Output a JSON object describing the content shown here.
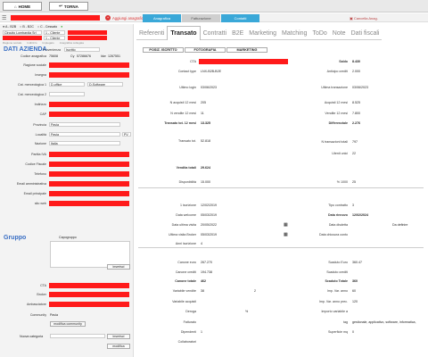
{
  "topbar": {
    "home": "HOME",
    "back": "TORNA",
    "add_label": "Aggiungi anagrafica",
    "tabs": [
      "Anagrafica",
      "Fatturazione",
      "Contatti"
    ],
    "cancel_label": "Cancella Anag."
  },
  "sidebar": {
    "filters": [
      "A - B2B",
      "B - B2C",
      "C - Cessato"
    ],
    "circuit": "Circuito Lombardia Srl",
    "c1": "1 - Cliente",
    "c2": "1 - Cliente",
    "sub": [
      "Ragione sociale",
      "Indirizzo",
      "Impiegato",
      "Anagrafica collegata"
    ],
    "section_title": "DATI AZIENDA",
    "provenienza_label": "Provenienza",
    "provenienza_value": "Iscritto",
    "codice_label": "Codice anagrafica",
    "codice_value": "75608",
    "cy_label": "Cy",
    "cy_value": "57286676",
    "idw_label": "Idw",
    "idw_value": "1267551",
    "rows": [
      {
        "label": "Ragione sociale",
        "value": ""
      },
      {
        "label": "Insegna",
        "value": ""
      },
      {
        "label": "Cat. merceologica 1",
        "value": "D-office"
      },
      {
        "label": "Cat. merceologica 2",
        "value": ""
      },
      {
        "label": "Indirizzo",
        "value": ""
      },
      {
        "label": "CAP",
        "value": ""
      },
      {
        "label": "Provincia",
        "value": "Pavia"
      },
      {
        "label": "Località",
        "value": "Pavia"
      },
      {
        "label": "Nazione",
        "value": "Italia"
      },
      {
        "label": "Partita IVA",
        "value": ""
      },
      {
        "label": "Codice Fiscale",
        "value": ""
      },
      {
        "label": "Telefono",
        "value": ""
      },
      {
        "label": "Email amministrativa",
        "value": ""
      },
      {
        "label": "Email principale",
        "value": ""
      },
      {
        "label": "sito web",
        "value": ""
      }
    ],
    "cat1_sub": "D-Software",
    "provincia_code": "PV",
    "gruppo_title": "Gruppo",
    "capogruppo": "Capogruppo",
    "inserisci": "inserisci",
    "cta_label": "CTA",
    "broker_label": "Broker",
    "ambasciatore_label": "Ambasciatore",
    "community_label": "Community",
    "community_value": "Pavia",
    "modifica_community": "modifica community",
    "nuova_cat_label": "Nuova categoria",
    "inserisci2": "inserisci",
    "modifica": "modifica"
  },
  "main": {
    "tabs": [
      "Referenti",
      "Transato",
      "Contratti",
      "B2E",
      "Marketing",
      "Matching",
      "ToDo",
      "Note",
      "Dati fiscali"
    ],
    "subtabs": [
      "POSIZ. ISCRITTO",
      "FOTOGRAFIA",
      "MARKETING"
    ],
    "left": [
      {
        "label": "CTA",
        "value": ""
      },
      {
        "label": "Contact type",
        "value": "LNX-B2B-B2E"
      },
      {
        "label": "Ultimo login",
        "value": "03/06/2023"
      },
      {
        "label": "N acquisti 12 mesi",
        "value": "205"
      },
      {
        "label": "N vendite 12 mesi",
        "value": "11"
      },
      {
        "label": "Transato tot. 12 mesi",
        "value": "13.325"
      },
      {
        "label": "Transato tot.",
        "value": "52.818"
      },
      {
        "label": "Vendita totali",
        "value": "29.624"
      },
      {
        "label": "Disponibilità",
        "value": "15.000"
      }
    ],
    "right": [
      {
        "label": "Saldo",
        "value": "8.430"
      },
      {
        "label": "Anticipo crediti",
        "value": "2.000"
      },
      {
        "label": "Ultima transazione",
        "value": "03/06/2023"
      },
      {
        "label": "Acquisti 12 mesi",
        "value": "8.525"
      },
      {
        "label": "Vendite 12 mesi",
        "value": "7.800"
      },
      {
        "label": "Differenziale",
        "value": "2.276"
      },
      {
        "label": "N transazioni totali",
        "value": "797"
      },
      {
        "label": "Utenti unici",
        "value": "22"
      },
      {
        "label": "% 1000",
        "value": "25"
      }
    ],
    "dates_left": [
      {
        "label": "1 iscrizione",
        "value": "12/02/2019"
      },
      {
        "label": "Data welcome",
        "value": "05/03/2019"
      },
      {
        "label": "Data ultima visita",
        "value": "20/05/2022"
      },
      {
        "label": "Ultima visita Broker",
        "value": "05/03/2019"
      },
      {
        "label": "Anni iscrizione",
        "value": "4"
      }
    ],
    "dates_right": [
      {
        "label": "Tipo contratto",
        "value": "3"
      },
      {
        "label": "Data rinnovo",
        "value": "12/02/2024"
      },
      {
        "label": "Data disdetta",
        "value": "Da definire"
      },
      {
        "label": "Data chiusura conto",
        "value": ""
      }
    ],
    "canone_left": [
      {
        "label": "Canone euro",
        "value": "267.270"
      },
      {
        "label": "Canone crediti",
        "value": "194.738"
      },
      {
        "label": "Canone totale",
        "value": "462"
      },
      {
        "label": "Variabile vendite",
        "value": "38"
      },
      {
        "label": "Variabile acquisti",
        "value": ""
      },
      {
        "label": "Deroga",
        "value": ""
      },
      {
        "label": "Fatturato",
        "value": ""
      },
      {
        "label": "Dipendenti",
        "value": "1"
      },
      {
        "label": "Collaboratori",
        "value": ""
      }
    ],
    "var_extra": "2",
    "deroga_pct": "%",
    "canone_right": [
      {
        "label": "Scaduto Euro",
        "value": "360.47"
      },
      {
        "label": "Scaduto crediti",
        "value": ""
      },
      {
        "label": "Scaduto Totale",
        "value": "360"
      },
      {
        "label": "Imp. Var. anno",
        "value": "60"
      },
      {
        "label": "Imp. Var. anno prec.",
        "value": "120"
      },
      {
        "label": "Importo variabile a",
        "value": ""
      },
      {
        "label": "tag",
        "value": "gestionale, applicativo, software, informatica,"
      },
      {
        "label": "Superficie mq",
        "value": "0"
      }
    ]
  }
}
